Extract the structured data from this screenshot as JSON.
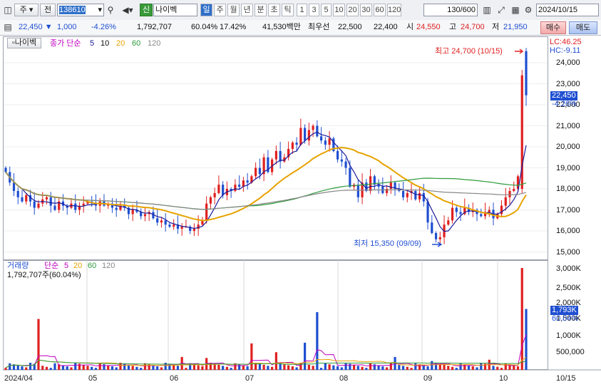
{
  "toolbar": {
    "market_label": "주",
    "scope_label": "전",
    "stock_code": "138610",
    "stock_badge": "신",
    "stock_name": "나이벡",
    "periods": [
      "일",
      "주",
      "월",
      "년",
      "분",
      "초",
      "틱"
    ],
    "selected_period": "일",
    "intervals": [
      "1",
      "3",
      "5",
      "10",
      "20",
      "30",
      "60",
      "120"
    ],
    "count_value": "130",
    "count_total": "/600",
    "date": "2024/10/15"
  },
  "quote": {
    "price": "22,450",
    "change": "1,000",
    "change_pct": "-4.26%",
    "volume": "1,792,707",
    "vol_ratio": "60.04%",
    "turnover": "17.42%",
    "amount": "41,530백만",
    "best_label": "최우선",
    "ask": "22,500",
    "bid": "22,400",
    "open_label": "시",
    "open": "24,550",
    "high_label": "고",
    "high": "24,700",
    "low_label": "저",
    "low": "21,950",
    "buy_label": "매수",
    "sell_label": "매도"
  },
  "price_pane": {
    "title": "나이벡",
    "ma_label": "종가 단순",
    "ma_periods": [
      "5",
      "10",
      "20",
      "60",
      "120"
    ],
    "lc": "LC:46.25",
    "hc": "HC:-9.11",
    "max_annot": "최고 24,700 (10/15)",
    "min_annot": "최저 15,350 (09/09)",
    "price_tag": "22,450",
    "pct_tag": "-4.26%",
    "y_ticks": [
      "24,000",
      "23,000",
      "22,000",
      "21,000",
      "20,000",
      "19,000",
      "18,000",
      "17,000",
      "16,000",
      "15,000"
    ]
  },
  "volume_pane": {
    "title": "거래량",
    "ma_label": "단순",
    "ma_periods": [
      "5",
      "20",
      "60",
      "120"
    ],
    "value_text": "1,792,707주(60.04%)",
    "vol_tag": "1,793K",
    "pct_tag": "60.04%",
    "y_ticks": [
      "3,000K",
      "2,500K",
      "2,000K",
      "1,500K",
      "1,000K",
      "500,000"
    ]
  },
  "x_axis": [
    "2024/04",
    "05",
    "06",
    "07",
    "08",
    "09",
    "10",
    "10/15"
  ],
  "colors": {
    "up": "#e02020",
    "down": "#1f4fd1",
    "ma5": "#1a1a9a",
    "ma20": "#e6a300",
    "ma60": "#2e9b3b",
    "ma120": "#888888",
    "vol_ma5": "#c000c0"
  },
  "chart_data": {
    "type": "candlestick",
    "price_range": [
      15000,
      24700
    ],
    "events": {
      "high": {
        "value": 24700,
        "date": "10/15"
      },
      "low": {
        "value": 15350,
        "date": "09/09"
      }
    },
    "last": {
      "open": 24550,
      "high": 24700,
      "low": 21950,
      "close": 22450,
      "volume": 1792707
    }
  }
}
